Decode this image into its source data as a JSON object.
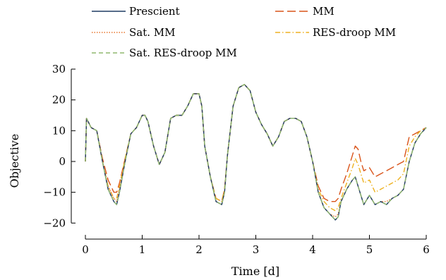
{
  "chart_data": {
    "type": "line",
    "xlabel": "Time [d]",
    "ylabel": "Objective",
    "xlim": [
      0,
      6
    ],
    "ylim": [
      -22,
      30
    ],
    "xticks": [
      0,
      1,
      2,
      3,
      4,
      5,
      6
    ],
    "yticks": [
      -20,
      -10,
      0,
      10,
      20,
      30
    ],
    "ytick_labels": [
      "−20",
      "−10",
      "0",
      "10",
      "20",
      "30"
    ],
    "grid": false,
    "legend_position": "top",
    "series": [
      {
        "name": "Prescient",
        "color": "#1f3b63",
        "dash": "solid",
        "x": [
          0,
          0.02,
          0.1,
          0.2,
          0.3,
          0.4,
          0.5,
          0.55,
          0.6,
          0.7,
          0.8,
          0.9,
          1.0,
          1.05,
          1.1,
          1.2,
          1.3,
          1.4,
          1.5,
          1.6,
          1.7,
          1.8,
          1.9,
          2.0,
          2.05,
          2.1,
          2.2,
          2.3,
          2.4,
          2.45,
          2.5,
          2.6,
          2.7,
          2.8,
          2.9,
          3.0,
          3.1,
          3.2,
          3.3,
          3.4,
          3.5,
          3.6,
          3.7,
          3.8,
          3.9,
          4.0,
          4.1,
          4.2,
          4.3,
          4.4,
          4.45,
          4.5,
          4.6,
          4.7,
          4.75,
          4.8,
          4.85,
          4.9,
          5.0,
          5.1,
          5.2,
          5.3,
          5.4,
          5.5,
          5.6,
          5.7,
          5.8,
          5.9,
          6.0
        ],
        "values": [
          0,
          14,
          11,
          10,
          0,
          -9,
          -13,
          -14,
          -10,
          0,
          9,
          11,
          15,
          15,
          13,
          5,
          -1,
          3,
          14,
          15,
          15,
          18,
          22,
          22,
          18,
          5,
          -5,
          -13,
          -14,
          -10,
          2,
          18,
          24,
          25,
          23,
          16,
          12,
          9,
          5,
          8,
          13,
          14,
          14,
          13,
          8,
          0,
          -10,
          -15,
          -17,
          -19,
          -18,
          -13,
          -9,
          -6,
          -5,
          -8,
          -11,
          -14,
          -11,
          -14,
          -13,
          -14,
          -12,
          -11,
          -9,
          0,
          6,
          9,
          11
        ]
      },
      {
        "name": "MM",
        "color": "#d95319",
        "dash": "long-dash",
        "x": [
          0,
          0.02,
          0.1,
          0.2,
          0.3,
          0.4,
          0.5,
          0.55,
          0.6,
          0.7,
          0.8,
          0.9,
          1.0,
          1.05,
          1.1,
          1.2,
          1.3,
          1.4,
          1.5,
          1.6,
          1.7,
          1.8,
          1.9,
          2.0,
          2.05,
          2.1,
          2.2,
          2.3,
          2.4,
          2.45,
          2.5,
          2.6,
          2.7,
          2.8,
          2.9,
          3.0,
          3.1,
          3.2,
          3.3,
          3.4,
          3.5,
          3.6,
          3.7,
          3.8,
          3.9,
          4.0,
          4.1,
          4.2,
          4.3,
          4.4,
          4.45,
          4.5,
          4.6,
          4.7,
          4.75,
          4.8,
          4.85,
          4.9,
          5.0,
          5.1,
          5.2,
          5.3,
          5.4,
          5.5,
          5.6,
          5.7,
          5.8,
          5.9,
          6.0
        ],
        "values": [
          0,
          14,
          11,
          10,
          1,
          -6,
          -10,
          -10,
          -7,
          1,
          9,
          11,
          15,
          15,
          13,
          5,
          -1,
          3,
          14,
          15,
          15,
          18,
          22,
          22,
          18,
          5,
          -5,
          -12,
          -13,
          -9,
          2,
          18,
          24,
          25,
          23,
          16,
          12,
          9,
          5,
          8,
          13,
          14,
          14,
          13,
          8,
          0,
          -8,
          -12,
          -13,
          -13,
          -12,
          -9,
          -4,
          2,
          5,
          4,
          0,
          -3,
          -2,
          -5,
          -4,
          -3,
          -2,
          -1,
          0,
          8,
          9,
          10,
          11
        ]
      },
      {
        "name": "Sat. MM",
        "color": "#e8772e",
        "dash": "dotted",
        "x": [
          0,
          0.02,
          0.1,
          0.2,
          0.3,
          0.4,
          0.5,
          0.55,
          0.6,
          0.7,
          0.8,
          0.9,
          1.0,
          1.05,
          1.1,
          1.2,
          1.3,
          1.4,
          1.5,
          1.6,
          1.7,
          1.8,
          1.9,
          2.0,
          2.05,
          2.1,
          2.2,
          2.3,
          2.4,
          2.45,
          2.5,
          2.6,
          2.7,
          2.8,
          2.9,
          3.0,
          3.1,
          3.2,
          3.3,
          3.4,
          3.5,
          3.6,
          3.7,
          3.8,
          3.9,
          4.0,
          4.1,
          4.2,
          4.3,
          4.4,
          4.45,
          4.5,
          4.6,
          4.7,
          4.75,
          4.8,
          4.85,
          4.9,
          5.0,
          5.1,
          5.2,
          5.3,
          5.4,
          5.5,
          5.6,
          5.7,
          5.8,
          5.9,
          6.0
        ],
        "values": [
          0,
          14,
          11,
          10,
          0,
          -8,
          -12,
          -13,
          -9,
          0,
          9,
          11,
          15,
          15,
          13,
          5,
          -1,
          3,
          14,
          15,
          15,
          18,
          22,
          22,
          18,
          5,
          -5,
          -13,
          -14,
          -10,
          2,
          18,
          24,
          25,
          23,
          16,
          12,
          9,
          5,
          8,
          13,
          14,
          14,
          13,
          8,
          0,
          -10,
          -15,
          -17,
          -18,
          -17,
          -13,
          -9,
          -6,
          -5,
          -8,
          -11,
          -14,
          -11,
          -14,
          -13,
          -13,
          -12,
          -11,
          -9,
          0,
          6,
          9,
          11
        ]
      },
      {
        "name": "RES-droop MM",
        "color": "#edb120",
        "dash": "dash-dot",
        "x": [
          0,
          0.02,
          0.1,
          0.2,
          0.3,
          0.4,
          0.5,
          0.55,
          0.6,
          0.7,
          0.8,
          0.9,
          1.0,
          1.05,
          1.1,
          1.2,
          1.3,
          1.4,
          1.5,
          1.6,
          1.7,
          1.8,
          1.9,
          2.0,
          2.05,
          2.1,
          2.2,
          2.3,
          2.4,
          2.45,
          2.5,
          2.6,
          2.7,
          2.8,
          2.9,
          3.0,
          3.1,
          3.2,
          3.3,
          3.4,
          3.5,
          3.6,
          3.7,
          3.8,
          3.9,
          4.0,
          4.1,
          4.2,
          4.3,
          4.4,
          4.45,
          4.5,
          4.6,
          4.7,
          4.75,
          4.8,
          4.85,
          4.9,
          5.0,
          5.1,
          5.2,
          5.3,
          5.4,
          5.5,
          5.6,
          5.7,
          5.8,
          5.9,
          6.0
        ],
        "values": [
          0,
          14,
          11,
          10,
          0,
          -8,
          -12,
          -12,
          -8,
          1,
          9,
          11,
          15,
          15,
          13,
          5,
          -1,
          3,
          14,
          15,
          15,
          18,
          22,
          22,
          18,
          5,
          -5,
          -12,
          -13,
          -9,
          2,
          18,
          24,
          25,
          23,
          16,
          12,
          9,
          5,
          8,
          13,
          14,
          14,
          13,
          8,
          0,
          -9,
          -13,
          -15,
          -16,
          -15,
          -12,
          -7,
          -2,
          1,
          -1,
          -4,
          -7,
          -6,
          -10,
          -9,
          -8,
          -7,
          -6,
          -4,
          5,
          8,
          10,
          11
        ]
      },
      {
        "name": "Sat. RES-droop MM",
        "color": "#8fb86e",
        "dash": "dashed",
        "x": [
          0,
          0.02,
          0.1,
          0.2,
          0.3,
          0.4,
          0.5,
          0.55,
          0.6,
          0.7,
          0.8,
          0.9,
          1.0,
          1.05,
          1.1,
          1.2,
          1.3,
          1.4,
          1.5,
          1.6,
          1.7,
          1.8,
          1.9,
          2.0,
          2.05,
          2.1,
          2.2,
          2.3,
          2.4,
          2.45,
          2.5,
          2.6,
          2.7,
          2.8,
          2.9,
          3.0,
          3.1,
          3.2,
          3.3,
          3.4,
          3.5,
          3.6,
          3.7,
          3.8,
          3.9,
          4.0,
          4.1,
          4.2,
          4.3,
          4.4,
          4.45,
          4.5,
          4.6,
          4.7,
          4.75,
          4.8,
          4.85,
          4.9,
          5.0,
          5.1,
          5.2,
          5.3,
          5.4,
          5.5,
          5.6,
          5.7,
          5.8,
          5.9,
          6.0
        ],
        "values": [
          0,
          14,
          11,
          10,
          0,
          -9,
          -13,
          -14,
          -10,
          0,
          9,
          11,
          15,
          15,
          13,
          5,
          -1,
          3,
          14,
          15,
          15,
          18,
          22,
          22,
          18,
          5,
          -5,
          -13,
          -14,
          -10,
          2,
          18,
          24,
          25,
          23,
          16,
          12,
          9,
          5,
          8,
          13,
          14,
          14,
          13,
          8,
          0,
          -10,
          -15,
          -17,
          -19,
          -18,
          -13,
          -9,
          -6,
          -5,
          -8,
          -11,
          -14,
          -11,
          -14,
          -13,
          -14,
          -12,
          -11,
          -9,
          0,
          6,
          9,
          11
        ]
      }
    ]
  }
}
